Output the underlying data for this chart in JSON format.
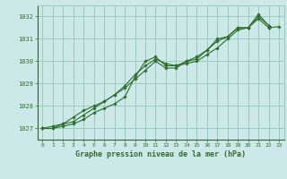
{
  "title": "Graphe pression niveau de la mer (hPa)",
  "bg_color": "#cce8e8",
  "grid_color": "#99ccbb",
  "line_color": "#2d6e2d",
  "marker_color": "#2d6e2d",
  "xlim": [
    -0.5,
    23.5
  ],
  "ylim": [
    1026.5,
    1032.5
  ],
  "yticks": [
    1027,
    1028,
    1029,
    1030,
    1031,
    1032
  ],
  "xticks": [
    0,
    1,
    2,
    3,
    4,
    5,
    6,
    7,
    8,
    9,
    10,
    11,
    12,
    13,
    14,
    15,
    16,
    17,
    18,
    19,
    20,
    21,
    22,
    23
  ],
  "series": [
    [
      1027.0,
      1027.0,
      1027.2,
      1027.3,
      1027.6,
      1027.9,
      1028.2,
      1028.5,
      1028.9,
      1029.4,
      1029.8,
      1030.1,
      1029.9,
      1029.8,
      1030.0,
      1030.2,
      1030.5,
      1031.0,
      1031.1,
      1031.5,
      1031.5,
      1032.1,
      1031.6,
      null
    ],
    [
      1027.0,
      1027.1,
      1027.2,
      1027.5,
      1027.8,
      1028.0,
      1028.2,
      1028.5,
      1028.8,
      1029.2,
      1029.6,
      1030.0,
      1029.7,
      1029.7,
      1030.0,
      1030.1,
      1030.5,
      1030.9,
      1031.1,
      1031.5,
      1031.5,
      1032.0,
      1031.6,
      null
    ],
    [
      1027.0,
      1027.0,
      1027.1,
      1027.2,
      1027.4,
      1027.7,
      1027.9,
      1028.1,
      1028.4,
      1029.3,
      1030.0,
      1030.2,
      1029.8,
      1029.8,
      1029.9,
      1030.0,
      1030.3,
      1030.6,
      1031.0,
      1031.4,
      1031.5,
      1031.9,
      1031.5,
      null
    ],
    [
      null,
      null,
      null,
      null,
      null,
      null,
      null,
      null,
      null,
      null,
      null,
      null,
      null,
      null,
      null,
      null,
      null,
      null,
      null,
      null,
      null,
      null,
      1031.5,
      1031.55
    ]
  ]
}
